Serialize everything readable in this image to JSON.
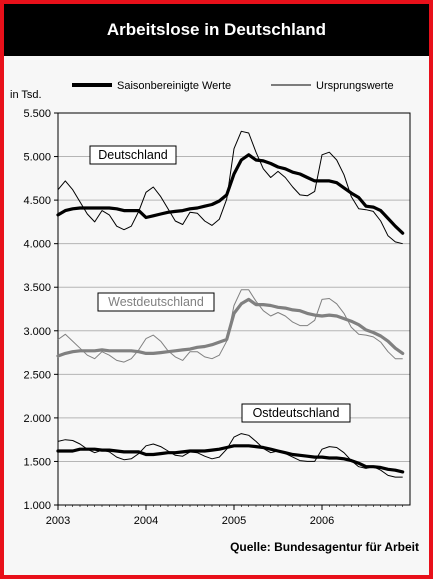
{
  "title": "Arbeitslose in Deutschland",
  "source": "Quelle: Bundesagentur für Arbeit",
  "chart_data": {
    "type": "line",
    "ylabel": "in Tsd.",
    "ylim": [
      1000,
      5500
    ],
    "y_ticks": [
      "5.500",
      "5.000",
      "4.500",
      "4.000",
      "3.500",
      "3.000",
      "2.500",
      "2.000",
      "1.500",
      "1.000"
    ],
    "y_tick_values": [
      5500,
      5000,
      4500,
      4000,
      3500,
      3000,
      2500,
      2000,
      1500,
      1000
    ],
    "x_ticks": [
      "2003",
      "2004",
      "2005",
      "2006"
    ],
    "x_tick_values": [
      2003,
      2004,
      2005,
      2006
    ],
    "xlim": [
      2003,
      2007
    ],
    "grid": "horizontal",
    "legend": [
      {
        "name": "Saisonbereinigte Werte",
        "style": "thick"
      },
      {
        "name": "Ursprungswerte",
        "style": "thin"
      }
    ],
    "regions": [
      {
        "label": "Deutschland",
        "color": "#000000",
        "saisonbereinigt": [
          4330,
          4380,
          4400,
          4410,
          4410,
          4410,
          4410,
          4410,
          4400,
          4380,
          4380,
          4380,
          4300,
          4320,
          4340,
          4360,
          4370,
          4380,
          4400,
          4410,
          4430,
          4450,
          4490,
          4560,
          4800,
          4960,
          5020,
          4960,
          4950,
          4920,
          4880,
          4860,
          4820,
          4800,
          4760,
          4720,
          4720,
          4720,
          4700,
          4640,
          4580,
          4530,
          4430,
          4420,
          4380,
          4290,
          4200,
          4120
        ],
        "ursprung": [
          4620,
          4720,
          4620,
          4480,
          4340,
          4250,
          4380,
          4330,
          4200,
          4160,
          4200,
          4370,
          4590,
          4650,
          4540,
          4400,
          4260,
          4220,
          4360,
          4350,
          4260,
          4210,
          4280,
          4510,
          5090,
          5290,
          5270,
          5050,
          4860,
          4760,
          4830,
          4760,
          4650,
          4560,
          4550,
          4600,
          5020,
          5050,
          4960,
          4790,
          4540,
          4400,
          4390,
          4370,
          4260,
          4090,
          4020,
          4000
        ]
      },
      {
        "label": "Westdeutschland",
        "color": "#808080",
        "saisonbereinigt": [
          2710,
          2740,
          2760,
          2770,
          2770,
          2770,
          2780,
          2770,
          2770,
          2770,
          2770,
          2760,
          2740,
          2740,
          2750,
          2760,
          2770,
          2780,
          2790,
          2810,
          2820,
          2840,
          2870,
          2900,
          3200,
          3310,
          3360,
          3300,
          3300,
          3290,
          3270,
          3260,
          3240,
          3230,
          3200,
          3180,
          3170,
          3180,
          3170,
          3140,
          3110,
          3070,
          3010,
          2980,
          2940,
          2880,
          2800,
          2740
        ],
        "ursprung": [
          2900,
          2960,
          2880,
          2800,
          2720,
          2680,
          2760,
          2720,
          2660,
          2640,
          2680,
          2780,
          2910,
          2950,
          2880,
          2770,
          2700,
          2660,
          2760,
          2760,
          2700,
          2680,
          2720,
          2880,
          3290,
          3470,
          3470,
          3340,
          3230,
          3170,
          3210,
          3170,
          3100,
          3060,
          3060,
          3120,
          3360,
          3370,
          3310,
          3200,
          3040,
          2960,
          2950,
          2930,
          2870,
          2760,
          2680,
          2680
        ]
      },
      {
        "label": "Ostdeutschland",
        "color": "#000000",
        "saisonbereinigt": [
          1620,
          1620,
          1620,
          1640,
          1640,
          1640,
          1630,
          1630,
          1620,
          1610,
          1610,
          1610,
          1580,
          1580,
          1590,
          1600,
          1600,
          1610,
          1620,
          1620,
          1620,
          1630,
          1640,
          1660,
          1680,
          1680,
          1680,
          1670,
          1660,
          1640,
          1620,
          1600,
          1580,
          1570,
          1560,
          1550,
          1550,
          1540,
          1540,
          1530,
          1510,
          1480,
          1440,
          1440,
          1430,
          1410,
          1400,
          1380
        ],
        "ursprung": [
          1730,
          1750,
          1740,
          1700,
          1640,
          1600,
          1630,
          1610,
          1550,
          1520,
          1530,
          1590,
          1680,
          1700,
          1670,
          1620,
          1570,
          1560,
          1610,
          1600,
          1560,
          1530,
          1550,
          1640,
          1780,
          1820,
          1800,
          1730,
          1650,
          1600,
          1620,
          1590,
          1550,
          1510,
          1500,
          1500,
          1640,
          1670,
          1660,
          1600,
          1510,
          1440,
          1420,
          1440,
          1400,
          1340,
          1320,
          1320
        ]
      }
    ]
  }
}
